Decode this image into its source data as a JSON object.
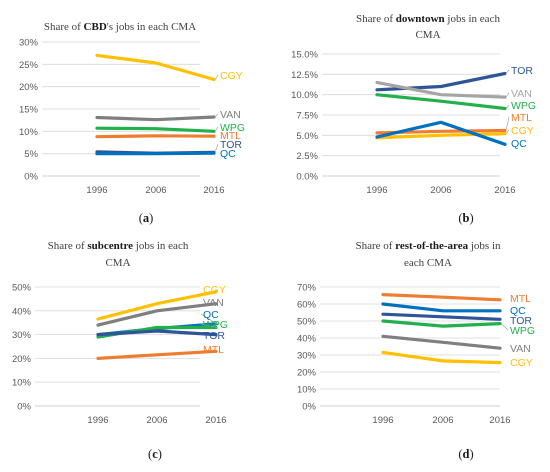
{
  "chart_data": [
    {
      "type": "line",
      "title": {
        "pre": "Share of ",
        "bold": "CBD",
        "post": "'s jobs in each CMA",
        "pre2": "",
        "bold2": "",
        "post2": ""
      },
      "caption": "a",
      "x": [
        "1996",
        "2006",
        "2016"
      ],
      "ytick_labels": [
        "0%",
        "5%",
        "10%",
        "15%",
        "20%",
        "25%",
        "30%"
      ],
      "ylim": [
        0,
        30
      ],
      "series": [
        {
          "name": "CGY",
          "color": "#FFC000",
          "values": [
            27.0,
            25.3,
            21.6
          ]
        },
        {
          "name": "VAN",
          "color": "#7F7F7F",
          "values": [
            13.1,
            12.6,
            13.2
          ]
        },
        {
          "name": "WPG",
          "color": "#22B04C",
          "values": [
            10.7,
            10.6,
            10.0
          ]
        },
        {
          "name": "MTL",
          "color": "#ED7D31",
          "values": [
            8.8,
            9.0,
            8.9
          ]
        },
        {
          "name": "TOR",
          "color": "#2F5597",
          "values": [
            5.4,
            5.1,
            5.3
          ]
        },
        {
          "name": "QC",
          "color": "#0070C0",
          "values": [
            5.0,
            5.0,
            5.1
          ]
        }
      ]
    },
    {
      "type": "line",
      "title": {
        "pre": "Share of ",
        "bold": "downtown",
        "post": " jobs in each",
        "pre2": "CMA",
        "bold2": "",
        "post2": ""
      },
      "caption": "b",
      "x": [
        "1996",
        "2006",
        "2016"
      ],
      "ytick_labels": [
        "0.0%",
        "2.5%",
        "5.0%",
        "7.5%",
        "10.0%",
        "12.5%",
        "15.0%"
      ],
      "ylim": [
        0,
        15
      ],
      "series": [
        {
          "name": "TOR",
          "color": "#2F5597",
          "values": [
            10.6,
            11.0,
            12.6
          ]
        },
        {
          "name": "VAN",
          "color": "#A5A5A5",
          "values": [
            11.5,
            10.0,
            9.7
          ]
        },
        {
          "name": "WPG",
          "color": "#22B04C",
          "values": [
            10.0,
            9.2,
            8.3
          ]
        },
        {
          "name": "MTL",
          "color": "#ED7D31",
          "values": [
            5.3,
            5.5,
            5.6
          ]
        },
        {
          "name": "CGY",
          "color": "#FFC000",
          "values": [
            4.7,
            5.0,
            5.2
          ]
        },
        {
          "name": "QC",
          "color": "#0070C0",
          "values": [
            4.8,
            6.6,
            3.9
          ]
        }
      ]
    },
    {
      "type": "line",
      "title": {
        "pre": "Share of ",
        "bold": "subcentre",
        "post": " jobs in each",
        "pre2": "CMA",
        "bold2": "",
        "post2": ""
      },
      "caption": "c",
      "x": [
        "1996",
        "2006",
        "2016"
      ],
      "ytick_labels": [
        "0%",
        "10%",
        "20%",
        "30%",
        "40%",
        "50%"
      ],
      "ylim": [
        0,
        50
      ],
      "series": [
        {
          "name": "CGY",
          "color": "#FFC000",
          "values": [
            36.5,
            43.0,
            48.0
          ]
        },
        {
          "name": "VAN",
          "color": "#7F7F7F",
          "values": [
            34.0,
            40.0,
            43.0
          ]
        },
        {
          "name": "QC",
          "color": "#0070C0",
          "values": [
            30.0,
            32.5,
            34.5
          ]
        },
        {
          "name": "WPG",
          "color": "#22B04C",
          "values": [
            29.0,
            33.0,
            33.0
          ]
        },
        {
          "name": "TOR",
          "color": "#2F5597",
          "values": [
            30.0,
            31.5,
            30.0
          ]
        },
        {
          "name": "MTL",
          "color": "#ED7D31",
          "values": [
            20.0,
            21.5,
            23.0
          ]
        }
      ]
    },
    {
      "type": "line",
      "title": {
        "pre": "Share of ",
        "bold": "rest-of-the-area",
        "post": " jobs in",
        "pre2": "each CMA",
        "bold2": "",
        "post2": ""
      },
      "caption": "d",
      "x": [
        "1996",
        "2006",
        "2016"
      ],
      "ytick_labels": [
        "0%",
        "10%",
        "20%",
        "30%",
        "40%",
        "50%",
        "60%",
        "70%"
      ],
      "ylim": [
        0,
        70
      ],
      "series": [
        {
          "name": "MTL",
          "color": "#ED7D31",
          "values": [
            65.5,
            64.0,
            62.5
          ]
        },
        {
          "name": "QC",
          "color": "#0070C0",
          "values": [
            60.0,
            56.0,
            56.0
          ]
        },
        {
          "name": "TOR",
          "color": "#2F5597",
          "values": [
            54.0,
            52.5,
            51.0
          ]
        },
        {
          "name": "WPG",
          "color": "#22B04C",
          "values": [
            50.0,
            47.0,
            48.5
          ]
        },
        {
          "name": "VAN",
          "color": "#7F7F7F",
          "values": [
            41.0,
            37.5,
            34.0
          ]
        },
        {
          "name": "CGY",
          "color": "#FFC000",
          "values": [
            31.5,
            26.5,
            25.5
          ]
        }
      ]
    }
  ]
}
